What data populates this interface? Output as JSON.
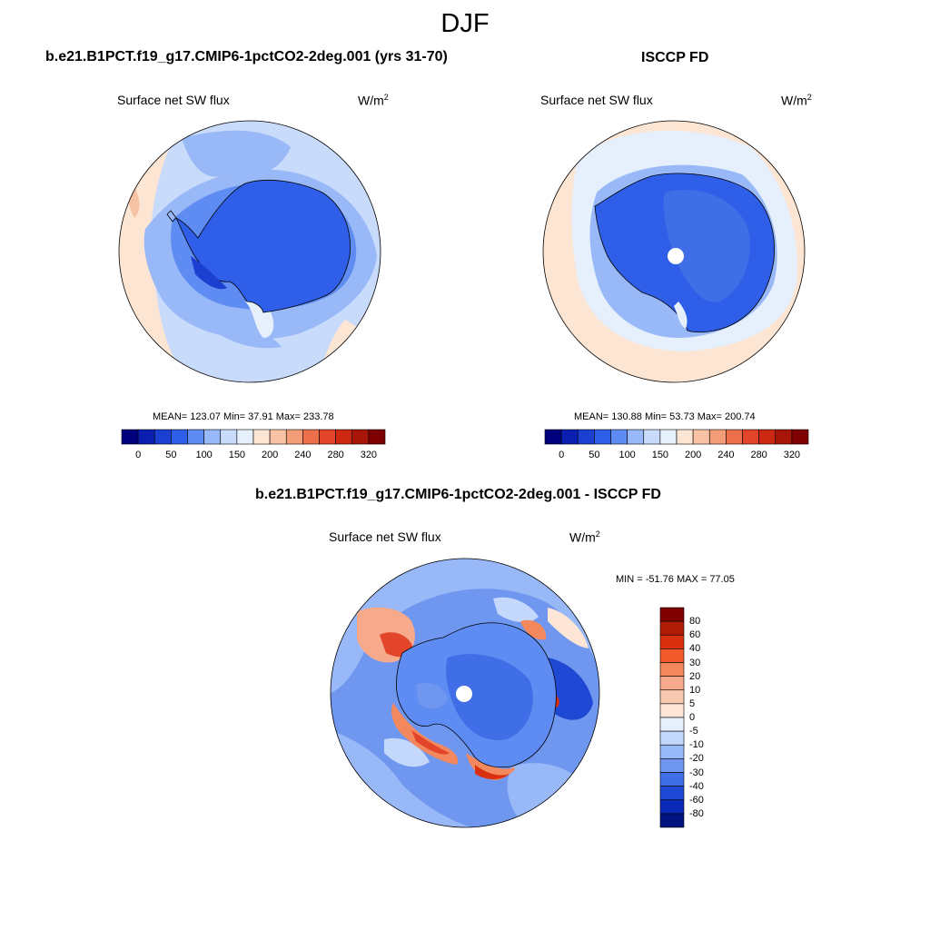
{
  "season": "DJF",
  "top_left": {
    "title": "b.e21.B1PCT.f19_g17.CMIP6-1pctCO2-2deg.001 (yrs 31-70)",
    "variable": "Surface net SW flux",
    "units": "W/m",
    "units_exp": "2",
    "stats": "MEAN= 123.07  Min=  37.91  Max= 233.78"
  },
  "top_right": {
    "title": "ISCCP FD",
    "variable": "Surface net SW flux",
    "units": "W/m",
    "units_exp": "2",
    "stats": "MEAN= 130.88  Min=  53.73  Max= 200.74"
  },
  "bottom": {
    "title": "b.e21.B1PCT.f19_g17.CMIP6-1pctCO2-2deg.001 - ISCCP FD",
    "variable": "Surface net SW flux",
    "units": "W/m",
    "units_exp": "2",
    "stats": "MIN = -51.76 MAX =  77.05"
  },
  "colorbar_abs": {
    "labels": [
      "0",
      "50",
      "100",
      "150",
      "200",
      "240",
      "280",
      "320"
    ],
    "colors": [
      "#00007f",
      "#0a1fb0",
      "#1b3fd0",
      "#2f5fe8",
      "#5f8cf2",
      "#98b8f7",
      "#c8dbfb",
      "#e6f0fd",
      "#fde5d3",
      "#f8c3a4",
      "#f39c78",
      "#ec6f4c",
      "#e3452a",
      "#cc2812",
      "#a8160a",
      "#7f0000"
    ]
  },
  "colorbar_diff": {
    "labels": [
      "80",
      "60",
      "40",
      "30",
      "20",
      "10",
      "5",
      "0",
      "-5",
      "-10",
      "-20",
      "-30",
      "-40",
      "-60",
      "-80"
    ],
    "colors": [
      "#7f0000",
      "#b01d06",
      "#d9300f",
      "#f25a2a",
      "#f3875d",
      "#f6a98b",
      "#f8c9af",
      "#fde6d6",
      "#e6f0fd",
      "#c3d8fa",
      "#98b8f7",
      "#6f97f0",
      "#3f6ee6",
      "#1f48d4",
      "#0b2ab8",
      "#00147f"
    ]
  }
}
